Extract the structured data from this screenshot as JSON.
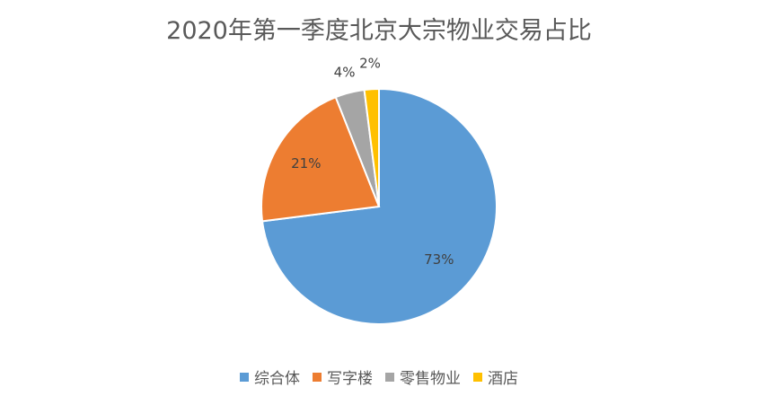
{
  "chart_data": {
    "type": "pie",
    "title": "2020年第一季度北京大宗物业交易占比",
    "categories": [
      "综合体",
      "写字楼",
      "零售物业",
      "酒店"
    ],
    "values": [
      73,
      21,
      4,
      2
    ],
    "labels": [
      "73%",
      "21%",
      "4%",
      "2%"
    ],
    "colors": [
      "#5B9BD5",
      "#ED7D31",
      "#A5A5A5",
      "#FFC000"
    ],
    "legend_position": "bottom"
  }
}
